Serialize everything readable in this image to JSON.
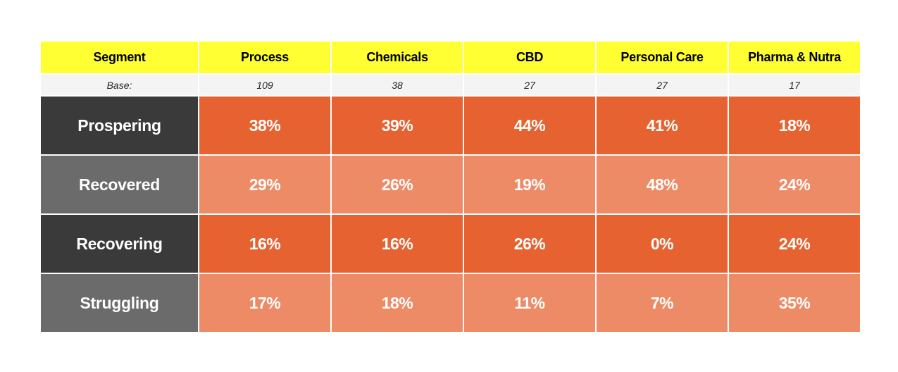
{
  "chart_data": {
    "type": "table",
    "header_label": "Segment",
    "base_label": "Base:",
    "categories": [
      "Process",
      "Chemicals",
      "CBD",
      "Personal Care",
      "Pharma & Nutra"
    ],
    "base": [
      "109",
      "38",
      "27",
      "27",
      "17"
    ],
    "series": [
      {
        "name": "Prospering",
        "values": [
          38,
          39,
          44,
          41,
          18
        ]
      },
      {
        "name": "Recovered",
        "values": [
          29,
          26,
          19,
          48,
          24
        ]
      },
      {
        "name": "Recovering",
        "values": [
          16,
          16,
          26,
          0,
          24
        ]
      },
      {
        "name": "Struggling",
        "values": [
          17,
          18,
          11,
          7,
          35
        ]
      }
    ],
    "unit": "%",
    "colors": {
      "header_bg": "#ffff33",
      "row_label_dark": "#3a3a3a",
      "row_label_light": "#6b6b6b",
      "cell_dark": "#e66230",
      "cell_light": "#ed8b66"
    }
  }
}
